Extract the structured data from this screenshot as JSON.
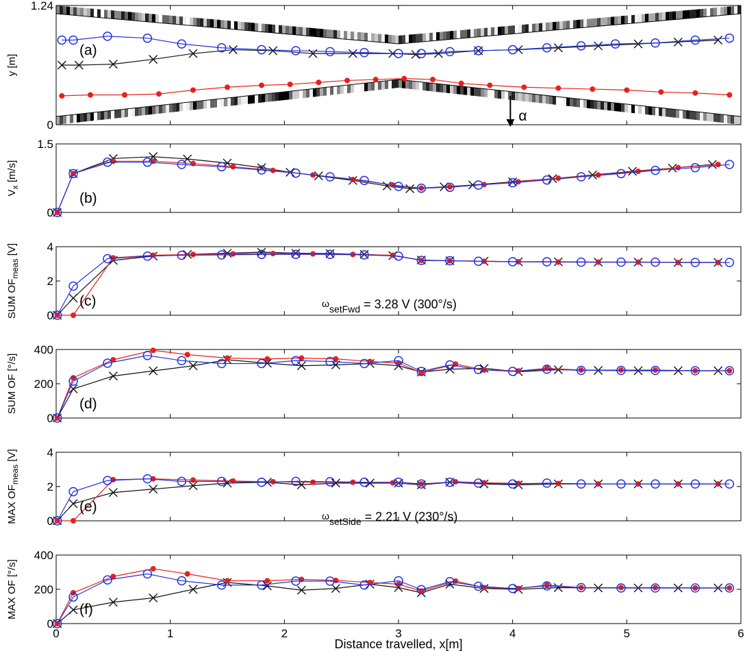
{
  "figure": {
    "xlabel": "Distance travelled, x[m]",
    "xticks": [
      "0",
      "1",
      "2",
      "3",
      "4",
      "5",
      "6"
    ]
  },
  "colors": {
    "blue": "#2233dd",
    "red": "#e8201a",
    "black": "#111111"
  },
  "chart_data": [
    {
      "type": "line",
      "panel_label": "(a)",
      "ylabel": "y [m]",
      "yticks": [
        "0",
        "1.24"
      ],
      "ylim": [
        0,
        1.24
      ],
      "xlim": [
        0,
        6
      ],
      "alpha_label": "α",
      "series": [
        {
          "color": "blue",
          "marker": "circle",
          "x": [
            0.05,
            0.15,
            0.45,
            0.8,
            1.1,
            1.45,
            1.8,
            2.1,
            2.4,
            2.7,
            3.0,
            3.2,
            3.45,
            3.7,
            4.0,
            4.3,
            4.6,
            4.9,
            5.25,
            5.6,
            5.9
          ],
          "y": [
            0.88,
            0.88,
            0.92,
            0.9,
            0.84,
            0.8,
            0.78,
            0.77,
            0.76,
            0.75,
            0.74,
            0.74,
            0.76,
            0.77,
            0.78,
            0.8,
            0.82,
            0.84,
            0.85,
            0.88,
            0.9
          ]
        },
        {
          "color": "black",
          "marker": "cross",
          "x": [
            0.05,
            0.2,
            0.5,
            0.85,
            1.2,
            1.55,
            1.9,
            2.25,
            2.6,
            2.95,
            3.15,
            3.35,
            3.7,
            4.05,
            4.4,
            4.75,
            5.1,
            5.45,
            5.8
          ],
          "y": [
            0.62,
            0.62,
            0.63,
            0.68,
            0.74,
            0.78,
            0.77,
            0.74,
            0.74,
            0.74,
            0.73,
            0.74,
            0.77,
            0.78,
            0.8,
            0.82,
            0.84,
            0.86,
            0.88
          ]
        },
        {
          "color": "red",
          "marker": "dot",
          "x": [
            0.05,
            0.3,
            0.6,
            0.9,
            1.2,
            1.5,
            1.8,
            2.05,
            2.3,
            2.55,
            2.8,
            3.05,
            3.3,
            3.55,
            3.8,
            4.1,
            4.4,
            4.7,
            5.0,
            5.3,
            5.6,
            5.9
          ],
          "y": [
            0.3,
            0.31,
            0.31,
            0.32,
            0.36,
            0.39,
            0.41,
            0.42,
            0.44,
            0.46,
            0.47,
            0.48,
            0.47,
            0.43,
            0.41,
            0.39,
            0.38,
            0.37,
            0.36,
            0.34,
            0.33,
            0.31
          ]
        }
      ]
    },
    {
      "type": "line",
      "panel_label": "(b)",
      "ylabel": "V_x [m/s]",
      "yticks": [
        "0",
        "1.5"
      ],
      "ylim": [
        0,
        1.5
      ],
      "xlim": [
        0,
        6
      ],
      "series": [
        {
          "color": "blue",
          "marker": "circle",
          "x": [
            0.01,
            0.15,
            0.45,
            0.8,
            1.1,
            1.45,
            1.8,
            2.1,
            2.4,
            2.7,
            3.0,
            3.2,
            3.45,
            3.7,
            4.0,
            4.3,
            4.6,
            4.95,
            5.25,
            5.6,
            5.9
          ],
          "y": [
            0.0,
            0.85,
            1.1,
            1.1,
            1.05,
            1.0,
            0.93,
            0.86,
            0.78,
            0.7,
            0.57,
            0.53,
            0.55,
            0.6,
            0.65,
            0.71,
            0.78,
            0.85,
            0.92,
            0.98,
            1.05
          ]
        },
        {
          "color": "red",
          "marker": "dot",
          "x": [
            0.01,
            0.15,
            0.5,
            0.85,
            1.2,
            1.55,
            1.9,
            2.25,
            2.6,
            2.95,
            3.2,
            3.45,
            3.75,
            4.05,
            4.4,
            4.75,
            5.1,
            5.45,
            5.8
          ],
          "y": [
            0.0,
            0.85,
            1.12,
            1.12,
            1.07,
            1.0,
            0.92,
            0.82,
            0.72,
            0.6,
            0.53,
            0.56,
            0.61,
            0.67,
            0.75,
            0.82,
            0.9,
            0.98,
            1.05
          ]
        },
        {
          "color": "black",
          "marker": "cross",
          "x": [
            0.01,
            0.15,
            0.5,
            0.85,
            1.15,
            1.5,
            1.8,
            2.05,
            2.3,
            2.6,
            2.9,
            3.1,
            3.4,
            3.65,
            4.0,
            4.35,
            4.7,
            5.05,
            5.4,
            5.75
          ],
          "y": [
            0.0,
            0.85,
            1.18,
            1.22,
            1.17,
            1.08,
            0.98,
            0.88,
            0.8,
            0.7,
            0.58,
            0.52,
            0.56,
            0.6,
            0.67,
            0.74,
            0.82,
            0.9,
            0.97,
            1.05
          ]
        }
      ]
    },
    {
      "type": "line",
      "panel_label": "(c)",
      "ylabel": "SUM OF_meas [V]",
      "yticks": [
        "0",
        "2",
        "4"
      ],
      "ylim": [
        0,
        4
      ],
      "xlim": [
        0,
        6
      ],
      "annotation": {
        "omega": "ω",
        "subscript": "setFwd",
        "text": " = 3.28 V (300°/s)"
      },
      "series": [
        {
          "color": "blue",
          "marker": "circle",
          "x": [
            0.01,
            0.15,
            0.45,
            0.8,
            1.1,
            1.45,
            1.8,
            2.1,
            2.4,
            2.7,
            3.0,
            3.2,
            3.45,
            3.7,
            4.0,
            4.3,
            4.6,
            4.95,
            5.25,
            5.6,
            5.9
          ],
          "y": [
            0.0,
            1.7,
            3.3,
            3.45,
            3.5,
            3.52,
            3.55,
            3.55,
            3.55,
            3.52,
            3.45,
            3.2,
            3.18,
            3.15,
            3.12,
            3.12,
            3.1,
            3.1,
            3.1,
            3.08,
            3.08
          ]
        },
        {
          "color": "red",
          "marker": "dot",
          "x": [
            0.01,
            0.15,
            0.5,
            0.85,
            1.2,
            1.55,
            1.9,
            2.25,
            2.6,
            2.95,
            3.2,
            3.45,
            3.75,
            4.05,
            4.4,
            4.75,
            5.1,
            5.45,
            5.8
          ],
          "y": [
            0.0,
            0.0,
            3.35,
            3.5,
            3.55,
            3.58,
            3.6,
            3.58,
            3.55,
            3.5,
            3.2,
            3.18,
            3.15,
            3.12,
            3.1,
            3.1,
            3.1,
            3.08,
            3.08
          ]
        },
        {
          "color": "black",
          "marker": "cross",
          "x": [
            0.01,
            0.15,
            0.5,
            0.85,
            1.15,
            1.5,
            1.8,
            2.1,
            2.4,
            2.7,
            2.95,
            3.2,
            3.45,
            3.75,
            4.05,
            4.4,
            4.75,
            5.1,
            5.45,
            5.8
          ],
          "y": [
            0.0,
            1.0,
            3.2,
            3.45,
            3.55,
            3.62,
            3.68,
            3.62,
            3.6,
            3.55,
            3.48,
            3.22,
            3.18,
            3.15,
            3.12,
            3.12,
            3.1,
            3.1,
            3.08,
            3.08
          ]
        }
      ]
    },
    {
      "type": "line",
      "panel_label": "(d)",
      "ylabel": "SUM OF [°/s]",
      "yticks": [
        "0",
        "200",
        "400"
      ],
      "ylim": [
        0,
        400
      ],
      "xlim": [
        0,
        6
      ],
      "series": [
        {
          "color": "blue",
          "marker": "circle",
          "x": [
            0.01,
            0.15,
            0.45,
            0.8,
            1.1,
            1.45,
            1.8,
            2.1,
            2.4,
            2.7,
            3.0,
            3.2,
            3.45,
            3.7,
            4.0,
            4.3,
            4.6,
            4.95,
            5.25,
            5.6,
            5.9
          ],
          "y": [
            0,
            215,
            320,
            365,
            335,
            318,
            318,
            335,
            330,
            318,
            335,
            272,
            310,
            283,
            272,
            285,
            278,
            278,
            278,
            276,
            276
          ]
        },
        {
          "color": "red",
          "marker": "dot",
          "x": [
            0.01,
            0.15,
            0.5,
            0.85,
            1.15,
            1.5,
            1.85,
            2.15,
            2.45,
            2.75,
            3.0,
            3.2,
            3.5,
            3.75,
            4.05,
            4.3,
            4.6,
            4.95,
            5.25,
            5.6,
            5.9
          ],
          "y": [
            0,
            235,
            340,
            395,
            370,
            350,
            345,
            350,
            345,
            330,
            320,
            265,
            315,
            280,
            275,
            290,
            280,
            280,
            280,
            276,
            276
          ]
        },
        {
          "color": "black",
          "marker": "cross",
          "x": [
            0.01,
            0.15,
            0.5,
            0.85,
            1.2,
            1.5,
            1.85,
            2.15,
            2.45,
            2.75,
            3.0,
            3.2,
            3.45,
            3.75,
            4.05,
            4.4,
            4.75,
            5.1,
            5.45,
            5.8
          ],
          "y": [
            0,
            170,
            245,
            275,
            305,
            340,
            320,
            305,
            310,
            318,
            305,
            268,
            285,
            290,
            270,
            282,
            278,
            276,
            276,
            276
          ]
        }
      ]
    },
    {
      "type": "line",
      "panel_label": "(e)",
      "ylabel": "MAX OF_meas [V]",
      "yticks": [
        "0",
        "2",
        "4"
      ],
      "ylim": [
        0,
        4
      ],
      "xlim": [
        0,
        6
      ],
      "annotation": {
        "omega": "ω",
        "subscript": "setSide",
        "text": " = 2.21 V (230°/s)"
      },
      "series": [
        {
          "color": "blue",
          "marker": "circle",
          "x": [
            0.01,
            0.15,
            0.45,
            0.8,
            1.1,
            1.45,
            1.8,
            2.1,
            2.4,
            2.7,
            3.0,
            3.2,
            3.45,
            3.7,
            4.0,
            4.3,
            4.6,
            4.95,
            5.25,
            5.6,
            5.9
          ],
          "y": [
            0.0,
            1.7,
            2.35,
            2.45,
            2.3,
            2.3,
            2.25,
            2.3,
            2.28,
            2.25,
            2.25,
            2.15,
            2.25,
            2.2,
            2.15,
            2.2,
            2.15,
            2.15,
            2.15,
            2.15,
            2.15
          ]
        },
        {
          "color": "red",
          "marker": "dot",
          "x": [
            0.01,
            0.15,
            0.5,
            0.85,
            1.2,
            1.55,
            1.9,
            2.25,
            2.6,
            2.95,
            3.2,
            3.5,
            3.75,
            4.05,
            4.4,
            4.75,
            5.1,
            5.45,
            5.8
          ],
          "y": [
            0.0,
            0.0,
            2.4,
            2.45,
            2.38,
            2.32,
            2.28,
            2.25,
            2.25,
            2.22,
            2.15,
            2.28,
            2.22,
            2.18,
            2.18,
            2.15,
            2.15,
            2.15,
            2.15
          ]
        },
        {
          "color": "black",
          "marker": "cross",
          "x": [
            0.01,
            0.15,
            0.5,
            0.85,
            1.2,
            1.5,
            1.85,
            2.15,
            2.45,
            2.75,
            3.0,
            3.2,
            3.45,
            3.75,
            4.05,
            4.4,
            4.75,
            5.1,
            5.45,
            5.8
          ],
          "y": [
            0.0,
            1.0,
            1.65,
            1.85,
            2.05,
            2.2,
            2.25,
            2.1,
            2.2,
            2.2,
            2.2,
            2.1,
            2.25,
            2.15,
            2.1,
            2.15,
            2.15,
            2.15,
            2.15,
            2.15
          ]
        }
      ]
    },
    {
      "type": "line",
      "panel_label": "(f)",
      "ylabel": "MAX OF [°/s]",
      "yticks": [
        "0",
        "200",
        "400"
      ],
      "ylim": [
        0,
        400
      ],
      "xlim": [
        0,
        6
      ],
      "series": [
        {
          "color": "blue",
          "marker": "circle",
          "x": [
            0.01,
            0.15,
            0.45,
            0.8,
            1.1,
            1.45,
            1.8,
            2.1,
            2.4,
            2.7,
            3.0,
            3.2,
            3.45,
            3.7,
            4.0,
            4.3,
            4.6,
            4.95,
            5.25,
            5.6,
            5.9
          ],
          "y": [
            0,
            155,
            255,
            290,
            250,
            225,
            225,
            248,
            248,
            225,
            250,
            198,
            245,
            218,
            205,
            220,
            210,
            208,
            208,
            208,
            208
          ]
        },
        {
          "color": "red",
          "marker": "dot",
          "x": [
            0.01,
            0.15,
            0.5,
            0.85,
            1.15,
            1.5,
            1.85,
            2.15,
            2.45,
            2.75,
            3.0,
            3.2,
            3.5,
            3.75,
            4.05,
            4.3,
            4.6,
            4.95,
            5.25,
            5.6,
            5.9
          ],
          "y": [
            0,
            180,
            275,
            320,
            290,
            250,
            250,
            258,
            252,
            240,
            230,
            190,
            248,
            210,
            205,
            225,
            210,
            210,
            210,
            208,
            208
          ]
        },
        {
          "color": "black",
          "marker": "cross",
          "x": [
            0.01,
            0.15,
            0.5,
            0.85,
            1.2,
            1.5,
            1.85,
            2.15,
            2.45,
            2.75,
            3.0,
            3.2,
            3.45,
            3.75,
            4.05,
            4.4,
            4.75,
            5.1,
            5.45,
            5.8
          ],
          "y": [
            0,
            80,
            125,
            150,
            200,
            240,
            220,
            195,
            205,
            230,
            210,
            180,
            230,
            205,
            200,
            210,
            208,
            208,
            208,
            208
          ]
        }
      ]
    }
  ]
}
